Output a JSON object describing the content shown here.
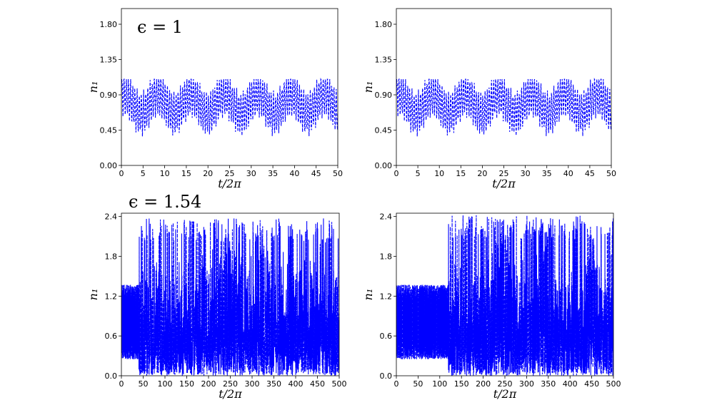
{
  "annotations": {
    "top_row": "ϵ = 1",
    "bottom_row": "ϵ = 1.54"
  },
  "chart_data": [
    {
      "type": "line",
      "xlabel": "t/2π",
      "ylabel": "n₁",
      "xlim": [
        0,
        50
      ],
      "ylim": [
        0,
        2.0
      ],
      "xticks": [
        0,
        5,
        10,
        15,
        20,
        25,
        30,
        35,
        40,
        45,
        50
      ],
      "yticks": [
        0.0,
        0.45,
        0.9,
        1.35,
        1.8
      ],
      "ytick_labels": [
        "0.00",
        "0.45",
        "0.90",
        "1.35",
        "1.80"
      ],
      "series": [
        {
          "style": "dashed",
          "color": "#0000ff",
          "pattern": "regular",
          "min": 0.33,
          "max": 1.1,
          "mid": 0.78,
          "start_chaos": null
        }
      ]
    },
    {
      "type": "line",
      "xlabel": "t/2π",
      "ylabel": "n₁",
      "xlim": [
        0,
        50
      ],
      "ylim": [
        0,
        2.0
      ],
      "xticks": [
        0,
        5,
        10,
        15,
        20,
        25,
        30,
        35,
        40,
        45,
        50
      ],
      "yticks": [
        0.0,
        0.45,
        0.9,
        1.35,
        1.8
      ],
      "ytick_labels": [
        "0.00",
        "0.45",
        "0.90",
        "1.35",
        "1.80"
      ],
      "series": [
        {
          "style": "dashed",
          "color": "#0000ff",
          "pattern": "regular",
          "min": 0.33,
          "max": 1.1,
          "mid": 0.78,
          "start_chaos": null
        }
      ]
    },
    {
      "type": "line",
      "xlabel": "t/2π",
      "ylabel": "n₁",
      "xlim": [
        0,
        500
      ],
      "ylim": [
        0,
        2.45
      ],
      "xticks": [
        0,
        50,
        100,
        150,
        200,
        250,
        300,
        350,
        400,
        450,
        500
      ],
      "yticks": [
        0.0,
        0.6,
        1.2,
        1.8,
        2.4
      ],
      "ytick_labels": [
        "0.0",
        "0.6",
        "1.2",
        "1.8",
        "2.4"
      ],
      "series": [
        {
          "style": "dashed",
          "color": "#0000ff",
          "pattern": "chaotic",
          "min": 0.25,
          "max": 1.37,
          "start_chaos": 40,
          "max_peak": 2.38
        }
      ]
    },
    {
      "type": "line",
      "xlabel": "t/2π",
      "ylabel": "n₁",
      "xlim": [
        0,
        500
      ],
      "ylim": [
        0,
        2.45
      ],
      "xticks": [
        0,
        50,
        100,
        150,
        200,
        250,
        300,
        350,
        400,
        450,
        500
      ],
      "yticks": [
        0.0,
        0.6,
        1.2,
        1.8,
        2.4
      ],
      "ytick_labels": [
        "0.0",
        "0.6",
        "1.2",
        "1.8",
        "2.4"
      ],
      "series": [
        {
          "style": "dashed",
          "color": "#0000ff",
          "pattern": "chaotic",
          "min": 0.25,
          "max": 1.37,
          "start_chaos": 120,
          "max_peak": 2.42
        }
      ]
    }
  ]
}
